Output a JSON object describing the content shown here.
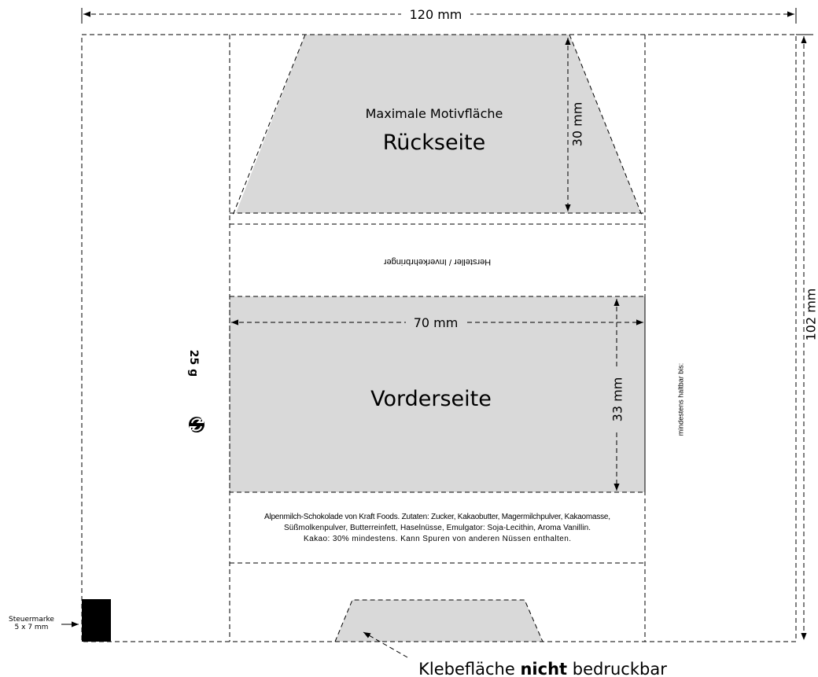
{
  "dimensions": {
    "width": "120 mm",
    "height": "102 mm",
    "back_height": "30 mm",
    "front_width": "70 mm",
    "front_height": "33 mm"
  },
  "back_area": {
    "caption": "Maximale Motivfläche",
    "title": "Rückseite"
  },
  "manufacturer": "Hersteller / Inverkehrbringer",
  "front_title": "Vorderseite",
  "weight": "25 g",
  "best_before": "mindestens haltbar bis:",
  "ingredients": [
    "Alpenmilch-Schokolade von Kraft Foods. Zutaten: Zucker, Kakaobutter, Magermilchpulver, Kakaomasse,",
    "Süßmolkenpulver, Butterreinfett, Haselnüsse, Emulgator: Soja-Lecithin, Aroma Vanillin.",
    "Kakao: 30% mindestens. Kann Spuren von anderen Nüssen enthalten."
  ],
  "tax_stamp": {
    "title": "Steuermarke",
    "size": "5 x 7 mm"
  },
  "glue_area": {
    "before": "Klebefläche",
    "bold": "nicht",
    "after": "bedruckbar"
  }
}
